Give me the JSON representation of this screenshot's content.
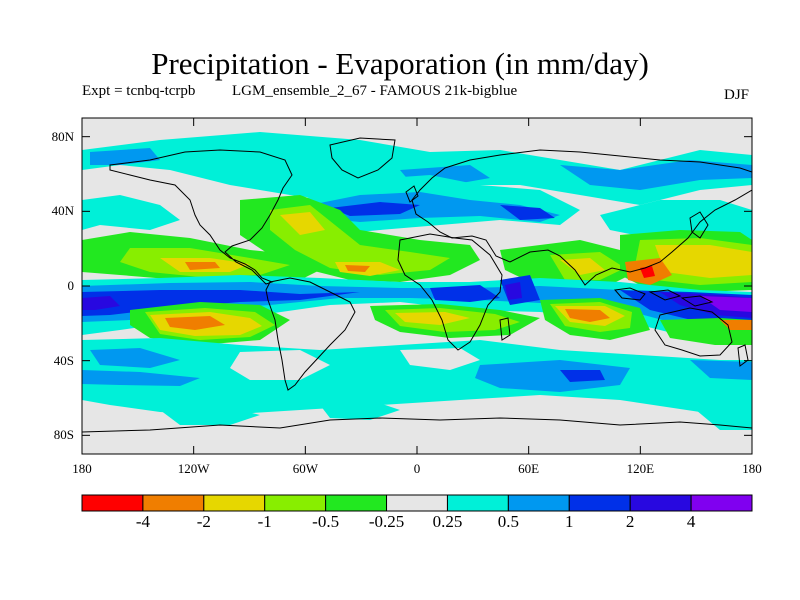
{
  "title": "Precipitation - Evaporation (in mm/day)",
  "experiment": "Expt = tcnbq-tcrpb",
  "run": "LGM_ensemble_2_67 - FAMOUS 21k-bigblue",
  "season": "DJF",
  "map": {
    "projection": "cylindrical-equidistant",
    "lon_range": [
      -180,
      180
    ],
    "lat_range": [
      -90,
      90
    ],
    "lat_ticks": [
      {
        "lat": 80,
        "label": "80N"
      },
      {
        "lat": 40,
        "label": "40N"
      },
      {
        "lat": 0,
        "label": "0"
      },
      {
        "lat": -40,
        "label": "40S"
      },
      {
        "lat": -80,
        "label": "80S"
      }
    ],
    "lon_ticks": [
      {
        "lon": -180,
        "label": "180"
      },
      {
        "lon": -120,
        "label": "120W"
      },
      {
        "lon": -60,
        "label": "60W"
      },
      {
        "lon": 0,
        "label": "0"
      },
      {
        "lon": 60,
        "label": "60E"
      },
      {
        "lon": 120,
        "label": "120E"
      },
      {
        "lon": 180,
        "label": "180"
      }
    ],
    "background_color": "#e6e6e6"
  },
  "colorbar": {
    "colors": [
      "#ff0000",
      "#f07e00",
      "#e6d700",
      "#88ee00",
      "#22e820",
      "#e6e6e6",
      "#00f0d8",
      "#0098f0",
      "#0030e8",
      "#2808e0",
      "#8000f0"
    ],
    "labels": [
      "-4",
      "-2",
      "-1",
      "-0.5",
      "-0.25",
      "0.25",
      "0.5",
      "1",
      "2",
      "4"
    ]
  }
}
